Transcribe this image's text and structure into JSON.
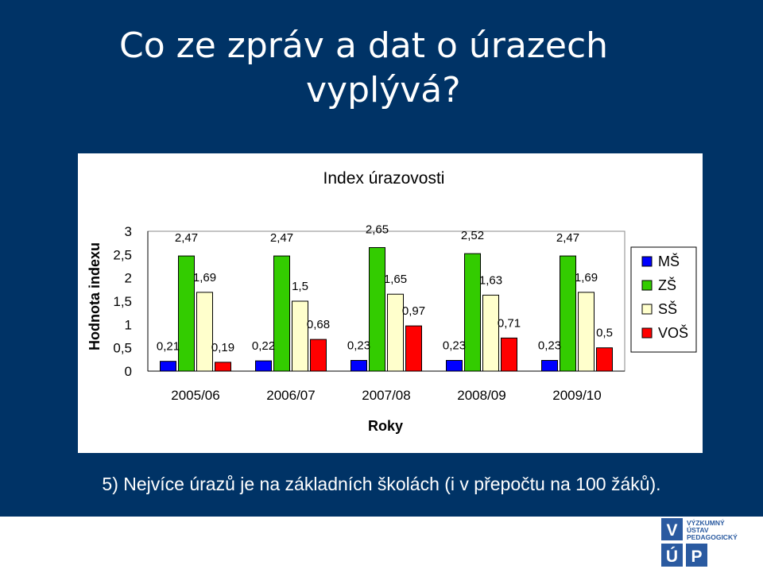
{
  "slide": {
    "title_line1": "Co ze zpráv a dat o úrazech",
    "title_line2": "vyplývá?",
    "caption": "5) Nejvíce úrazů je na základních školách (i v přepočtu na 100 žáků).",
    "background_color": "#003366"
  },
  "logo": {
    "text_line1": "VÝZKUMNÝ",
    "text_line2": "ÚSTAV",
    "text_line3": "PEDAGOGICKÝ",
    "letters": [
      "V",
      "Ú",
      "P"
    ],
    "color": "#2a5aa0"
  },
  "chart_data": {
    "type": "bar",
    "title": "Index úrazovosti",
    "xlabel": "Roky",
    "ylabel": "Hodnota indexu",
    "ylim": [
      0,
      3
    ],
    "yticks": [
      "0",
      "0,5",
      "1",
      "1,5",
      "2",
      "2,5",
      "3"
    ],
    "categories": [
      "2005/06",
      "2006/07",
      "2007/08",
      "2008/09",
      "2009/10"
    ],
    "series": [
      {
        "name": "MŠ",
        "color": "#0000ff",
        "values": [
          0.21,
          0.22,
          0.23,
          0.23,
          0.23
        ],
        "labels": [
          "0,21",
          "0,22",
          "0,23",
          "0,23",
          "0,23"
        ]
      },
      {
        "name": "ZŠ",
        "color": "#33cc00",
        "values": [
          2.47,
          2.47,
          2.65,
          2.52,
          2.47
        ],
        "labels": [
          "2,47",
          "2,47",
          "2,65",
          "2,52",
          "2,47"
        ]
      },
      {
        "name": "SŠ",
        "color": "#ffffcc",
        "values": [
          1.69,
          1.5,
          1.65,
          1.63,
          1.69
        ],
        "labels": [
          "1,69",
          "1,5",
          "1,65",
          "1,63",
          "1,69"
        ]
      },
      {
        "name": "VOŠ",
        "color": "#ff0000",
        "values": [
          0.19,
          0.68,
          0.97,
          0.71,
          0.5
        ],
        "labels": [
          "0,19",
          "0,68",
          "0,97",
          "0,71",
          "0,5"
        ]
      }
    ],
    "grid": false,
    "legend": "right"
  }
}
